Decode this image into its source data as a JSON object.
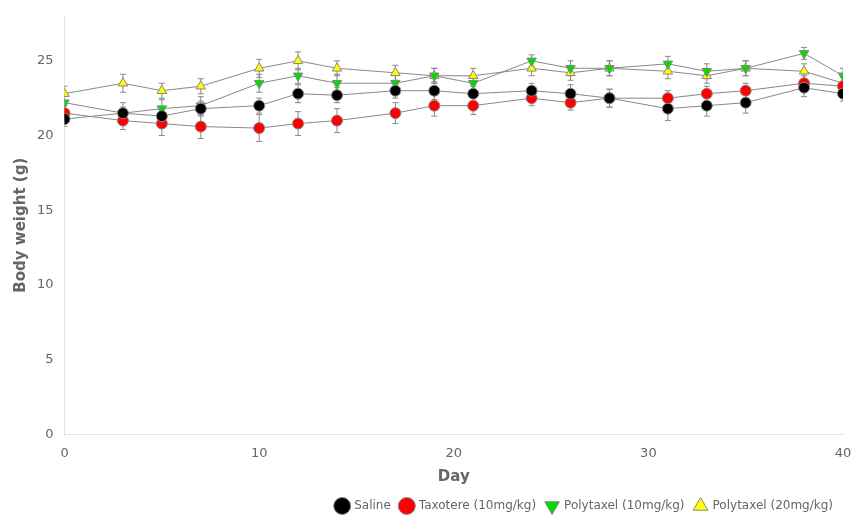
{
  "chart_data": {
    "type": "line",
    "xlabel": "Day",
    "ylabel": "Body weight (g)",
    "x": [
      0,
      3,
      5,
      7,
      10,
      12,
      14,
      17,
      19,
      21,
      24,
      26,
      28,
      31,
      33,
      35,
      38,
      40
    ],
    "color": "#888888",
    "series": [
      {
        "name": "Saline",
        "color": "#000000",
        "marker": "circle",
        "values": [
          21.1,
          21.5,
          21.3,
          21.8,
          22.0,
          22.8,
          22.7,
          23.0,
          23.0,
          22.8,
          23.0,
          22.8,
          22.5,
          21.8,
          22.0,
          22.2,
          23.2,
          22.8
        ],
        "errors": [
          0.5,
          0.4,
          0.4,
          0.5,
          0.5,
          0.6,
          0.5,
          0.5,
          0.6,
          0.5,
          0.5,
          0.6,
          0.6,
          0.8,
          0.7,
          0.7,
          0.6,
          0.5
        ]
      },
      {
        "name": "Taxotere (10mg/kg)",
        "color": "#ff0000",
        "marker": "circle",
        "values": [
          21.5,
          21.0,
          20.8,
          20.6,
          20.5,
          20.8,
          21.0,
          21.5,
          22.0,
          22.0,
          22.5,
          22.2,
          22.5,
          22.5,
          22.8,
          23.0,
          23.5,
          23.3
        ],
        "errors": [
          0.5,
          0.6,
          0.8,
          0.8,
          0.9,
          0.8,
          0.8,
          0.7,
          0.7,
          0.6,
          0.5,
          0.5,
          0.6,
          0.5,
          0.5,
          0.5,
          0.5,
          0.6
        ]
      },
      {
        "name": "Polytaxel (10mg/kg)",
        "color": "#00dd00",
        "marker": "triangle_down",
        "values": [
          22.2,
          21.5,
          21.8,
          22.0,
          23.5,
          24.0,
          23.5,
          23.5,
          24.0,
          23.5,
          25.0,
          24.5,
          24.5,
          24.8,
          24.3,
          24.5,
          25.5,
          24.0
        ],
        "errors": [
          0.5,
          0.7,
          0.6,
          0.6,
          0.6,
          0.5,
          0.6,
          0.6,
          0.5,
          0.5,
          0.4,
          0.5,
          0.5,
          0.5,
          0.5,
          0.5,
          0.4,
          0.5
        ]
      },
      {
        "name": "Polytaxel (20mg/kg)",
        "color": "#ffff00",
        "marker": "triangle_up",
        "values": [
          22.8,
          23.5,
          23.0,
          23.3,
          24.5,
          25.0,
          24.5,
          24.2,
          24.0,
          24.0,
          24.5,
          24.2,
          24.5,
          24.3,
          24.0,
          24.5,
          24.3,
          23.5
        ],
        "errors": [
          0.5,
          0.6,
          0.5,
          0.5,
          0.6,
          0.6,
          0.5,
          0.5,
          0.5,
          0.5,
          0.5,
          0.5,
          0.5,
          0.5,
          0.5,
          0.5,
          0.5,
          0.5
        ]
      }
    ],
    "xlim": [
      0,
      40
    ],
    "xticks": [
      0,
      10,
      20,
      30,
      40
    ],
    "ylim": [
      0,
      28
    ],
    "yticks": [
      0,
      5,
      10,
      15,
      20,
      25
    ],
    "grid": false,
    "legend": "lower right"
  }
}
